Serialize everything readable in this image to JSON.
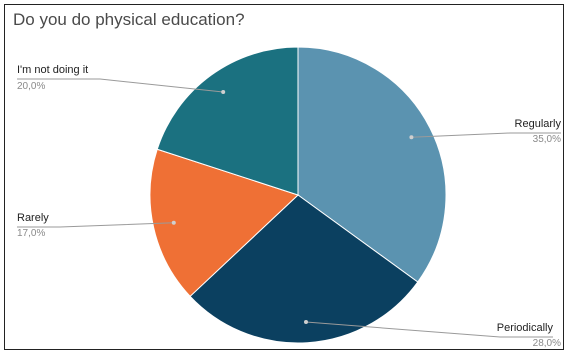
{
  "chart_data": {
    "type": "pie",
    "title": "Do you do physical education?",
    "slices": [
      {
        "label": "Regularly",
        "value": 35.0,
        "display": "35,0%",
        "color": "#5b93b0"
      },
      {
        "label": "Periodically",
        "value": 28.0,
        "display": "28,0%",
        "color": "#0b4060"
      },
      {
        "label": "Rarely",
        "value": 17.0,
        "display": "17,0%",
        "color": "#ef7035"
      },
      {
        "label": "I'm not doing it",
        "value": 20.0,
        "display": "20,0%",
        "color": "#1b7180"
      }
    ],
    "start_angle_deg": 0,
    "direction": "clockwise",
    "legend": "none"
  }
}
